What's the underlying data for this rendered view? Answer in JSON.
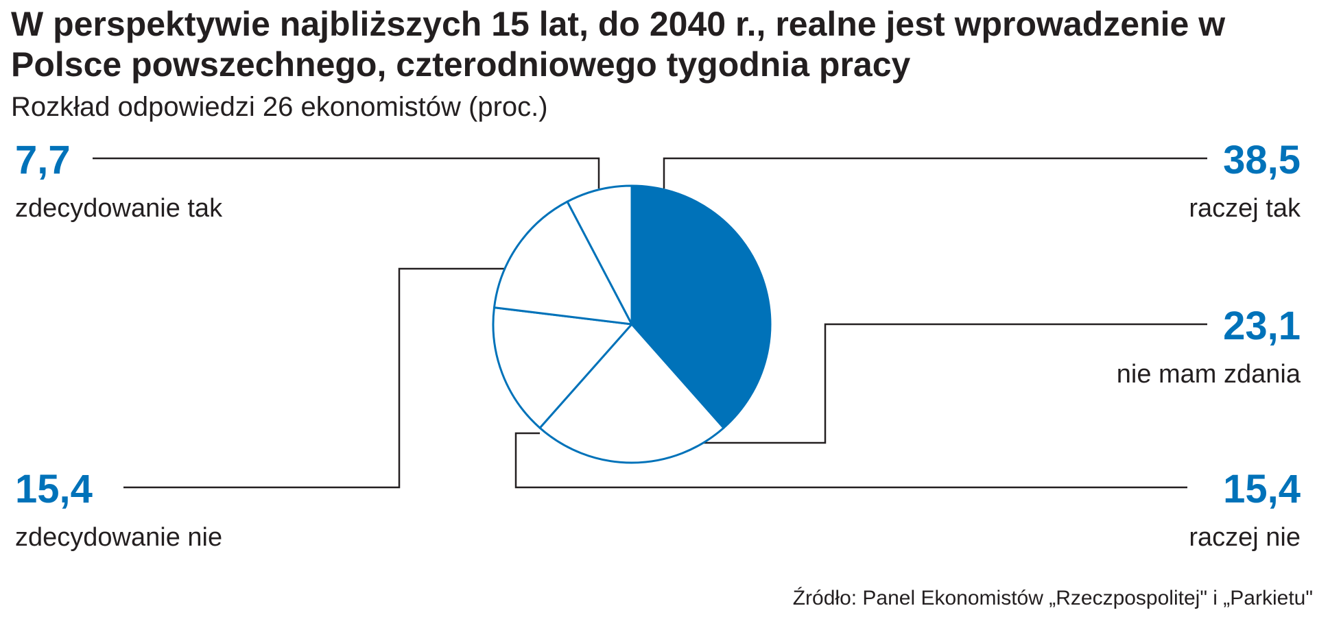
{
  "chart_data": {
    "type": "pie",
    "title": "W perspektywie najbliższych 15 lat, do 2040 r., realne jest wprowadzenie w Polsce powszechnego, czterodniowego tygodnia pracy",
    "subtitle": "Rozkład odpowiedzi 26 ekonomistów (proc.)",
    "slices": [
      {
        "label": "raczej tak",
        "value": 38.5,
        "display": "38,5",
        "filled": true
      },
      {
        "label": "nie mam zdania",
        "value": 23.1,
        "display": "23,1",
        "filled": false
      },
      {
        "label": "raczej nie",
        "value": 15.4,
        "display": "15,4",
        "filled": false
      },
      {
        "label": "zdecydowanie nie",
        "value": 15.4,
        "display": "15,4",
        "filled": false
      },
      {
        "label": "zdecydowanie tak",
        "value": 7.7,
        "display": "7,7",
        "filled": false
      }
    ],
    "colors": {
      "accent": "#0072b9",
      "empty": "#ffffff",
      "stroke": "#0072b9",
      "leader": "#231f20"
    },
    "source": "Źródło: Panel Ekonomistów „Rzeczpospolitej\" i „Parkietu\""
  }
}
